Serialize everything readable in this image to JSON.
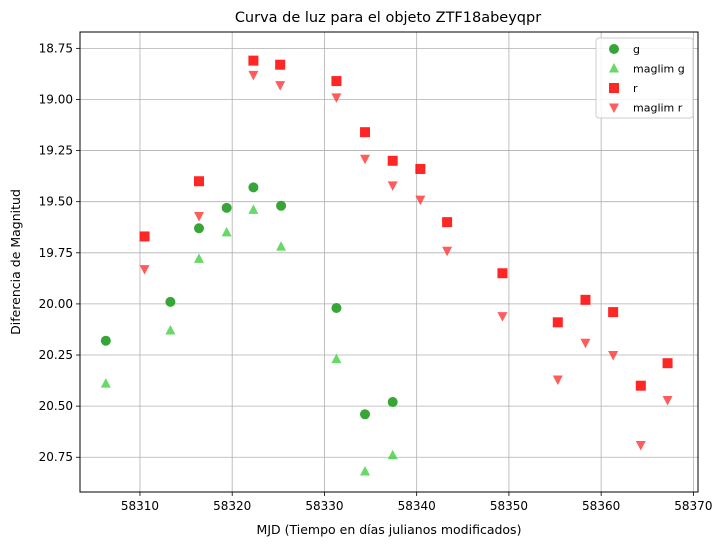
{
  "chart_data": {
    "type": "scatter",
    "title": "Curva de luz para el objeto ZTF18abeyqpr",
    "xlabel": "MJD (Tiempo en días julianos modificados)",
    "ylabel": "Diferencia de Magnitud",
    "xlim": [
      58303.5,
      58370.5
    ],
    "ylim": [
      20.92,
      18.67
    ],
    "y_inverted": true,
    "x_ticks": [
      58310,
      58320,
      58330,
      58340,
      58350,
      58360,
      58370
    ],
    "y_ticks": [
      18.75,
      19.0,
      19.25,
      19.5,
      19.75,
      20.0,
      20.25,
      20.5,
      20.75
    ],
    "x_tick_labels": [
      "58310",
      "58320",
      "58330",
      "58340",
      "58350",
      "58360",
      "58370"
    ],
    "y_tick_labels": [
      "18.75",
      "19.00",
      "19.25",
      "19.50",
      "19.75",
      "20.00",
      "20.25",
      "20.50",
      "20.75"
    ],
    "grid": true,
    "legend_position": "top-right",
    "series": [
      {
        "name": "g",
        "marker": "circle",
        "color": "#2ca02c",
        "points": [
          {
            "x": 58306.3,
            "y": 20.18
          },
          {
            "x": 58313.3,
            "y": 19.99
          },
          {
            "x": 58316.4,
            "y": 19.63
          },
          {
            "x": 58319.4,
            "y": 19.53
          },
          {
            "x": 58322.3,
            "y": 19.43
          },
          {
            "x": 58325.3,
            "y": 19.52
          },
          {
            "x": 58331.3,
            "y": 20.02
          },
          {
            "x": 58334.4,
            "y": 20.54
          },
          {
            "x": 58337.4,
            "y": 20.48
          }
        ]
      },
      {
        "name": "maglim g",
        "marker": "triangle-up",
        "color": "#33cc33",
        "points": [
          {
            "x": 58306.3,
            "y": 20.39
          },
          {
            "x": 58313.3,
            "y": 20.13
          },
          {
            "x": 58316.4,
            "y": 19.78
          },
          {
            "x": 58319.4,
            "y": 19.65
          },
          {
            "x": 58322.3,
            "y": 19.54
          },
          {
            "x": 58325.3,
            "y": 19.72
          },
          {
            "x": 58331.3,
            "y": 20.27
          },
          {
            "x": 58334.4,
            "y": 20.82
          },
          {
            "x": 58337.4,
            "y": 20.74
          }
        ]
      },
      {
        "name": "r",
        "marker": "square",
        "color": "#ff0000",
        "points": [
          {
            "x": 58310.5,
            "y": 19.67
          },
          {
            "x": 58316.4,
            "y": 19.4
          },
          {
            "x": 58322.3,
            "y": 18.81
          },
          {
            "x": 58325.2,
            "y": 18.83
          },
          {
            "x": 58331.3,
            "y": 18.91
          },
          {
            "x": 58334.4,
            "y": 19.16
          },
          {
            "x": 58337.4,
            "y": 19.3
          },
          {
            "x": 58340.4,
            "y": 19.34
          },
          {
            "x": 58343.3,
            "y": 19.6
          },
          {
            "x": 58349.3,
            "y": 19.85
          },
          {
            "x": 58355.3,
            "y": 20.09
          },
          {
            "x": 58358.3,
            "y": 19.98
          },
          {
            "x": 58361.3,
            "y": 20.04
          },
          {
            "x": 58364.3,
            "y": 20.4
          },
          {
            "x": 58367.2,
            "y": 20.29
          }
        ]
      },
      {
        "name": "maglim r",
        "marker": "triangle-down",
        "color": "#ff3333",
        "points": [
          {
            "x": 58310.5,
            "y": 19.83
          },
          {
            "x": 58316.4,
            "y": 19.57
          },
          {
            "x": 58322.3,
            "y": 18.88
          },
          {
            "x": 58325.2,
            "y": 18.93
          },
          {
            "x": 58331.3,
            "y": 18.99
          },
          {
            "x": 58334.4,
            "y": 19.29
          },
          {
            "x": 58337.4,
            "y": 19.42
          },
          {
            "x": 58340.4,
            "y": 19.49
          },
          {
            "x": 58343.3,
            "y": 19.74
          },
          {
            "x": 58349.3,
            "y": 20.06
          },
          {
            "x": 58355.3,
            "y": 20.37
          },
          {
            "x": 58358.3,
            "y": 20.19
          },
          {
            "x": 58361.3,
            "y": 20.25
          },
          {
            "x": 58364.3,
            "y": 20.69
          },
          {
            "x": 58367.2,
            "y": 20.47
          }
        ]
      }
    ]
  }
}
